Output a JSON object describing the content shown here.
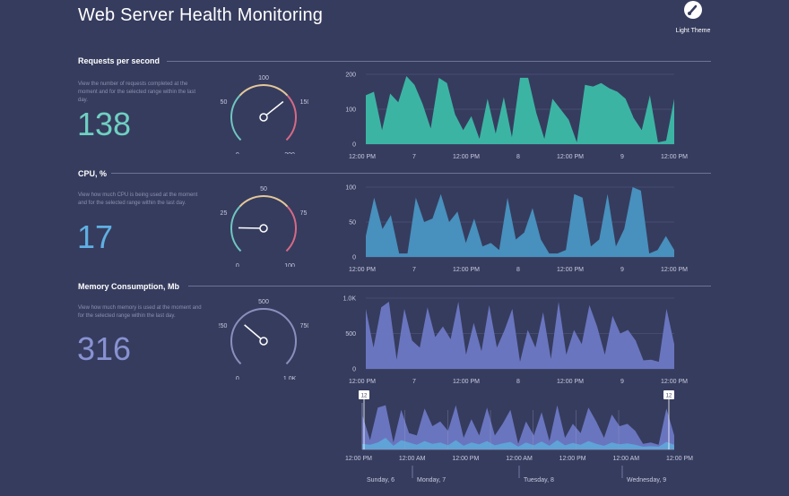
{
  "header": {
    "title": "Web Server Health Monitoring",
    "theme_label": "Light Theme"
  },
  "colors": {
    "background": "#363c5e",
    "requests": "#3dbaa8",
    "cpu": "#4a95c2",
    "memory": "#6e78c4",
    "memory_light": "#5fa5d8",
    "gauge_low": "#6fc6c0",
    "gauge_mid": "#e3c89a",
    "gauge_high": "#d66a86"
  },
  "sections": [
    {
      "id": "requests",
      "title": "Requests per second",
      "description": "View the number of requests completed at the moment and for the selected range within the last day.",
      "value": "138",
      "gauge": {
        "min": 0,
        "max": 200,
        "value": 138,
        "tick_labels": [
          "0",
          "50",
          "100",
          "150",
          "200"
        ]
      },
      "chart_data": {
        "type": "area",
        "ylim": [
          0,
          200
        ],
        "y_ticks": [
          "0",
          "100",
          "200"
        ],
        "x_ticks": [
          "12:00 PM",
          "7",
          "12:00 PM",
          "8",
          "12:00 PM",
          "9",
          "12:00 PM"
        ],
        "values": [
          140,
          150,
          40,
          145,
          120,
          195,
          170,
          115,
          45,
          190,
          175,
          85,
          40,
          80,
          15,
          130,
          30,
          135,
          20,
          190,
          190,
          90,
          15,
          130,
          100,
          70,
          5,
          170,
          165,
          175,
          160,
          150,
          130,
          75,
          40,
          140,
          5,
          10,
          130
        ]
      }
    },
    {
      "id": "cpu",
      "title": "CPU, %",
      "description": "View how much CPU is being used at the moment and for the selected range within the last day.",
      "value": "17",
      "gauge": {
        "min": 0,
        "max": 100,
        "value": 17,
        "tick_labels": [
          "0",
          "25",
          "50",
          "75",
          "100"
        ]
      },
      "chart_data": {
        "type": "area",
        "ylim": [
          0,
          100
        ],
        "y_ticks": [
          "0",
          "50",
          "100"
        ],
        "x_ticks": [
          "12:00 PM",
          "7",
          "12:00 PM",
          "8",
          "12:00 PM",
          "9",
          "12:00 PM"
        ],
        "values": [
          30,
          85,
          40,
          60,
          5,
          5,
          85,
          50,
          55,
          90,
          50,
          65,
          20,
          55,
          15,
          20,
          10,
          85,
          25,
          35,
          70,
          25,
          5,
          5,
          10,
          90,
          85,
          15,
          25,
          90,
          15,
          40,
          100,
          95,
          5,
          10,
          30,
          10
        ]
      }
    },
    {
      "id": "memory",
      "title": "Memory Consumption, Mb",
      "description": "View how much memory is used at the moment and for the selected range within the last day.",
      "value": "316",
      "gauge": {
        "min": 0,
        "max": 1000,
        "value": 316,
        "tick_labels": [
          "0",
          "250",
          "500",
          "750",
          "1.0K"
        ]
      },
      "chart_data": {
        "type": "area",
        "ylim": [
          0,
          1000
        ],
        "y_ticks": [
          "0",
          "500",
          "1.0K"
        ],
        "x_ticks": [
          "12:00 PM",
          "7",
          "12:00 PM",
          "8",
          "12:00 PM",
          "9",
          "12:00 PM"
        ],
        "values": [
          850,
          300,
          870,
          950,
          130,
          850,
          400,
          300,
          870,
          450,
          600,
          420,
          950,
          200,
          650,
          250,
          900,
          300,
          550,
          850,
          100,
          550,
          300,
          800,
          140,
          950,
          200,
          550,
          350,
          900,
          600,
          200,
          750,
          500,
          550,
          400,
          120,
          130,
          100,
          850,
          350
        ]
      }
    }
  ],
  "navigator": {
    "handle_label_left": "12",
    "handle_label_right": "12",
    "x_ticks": [
      "12:00 PM",
      "12:00 AM",
      "12:00 PM",
      "12:00 AM",
      "12:00 PM",
      "12:00 AM",
      "12:00 PM"
    ],
    "day_labels": [
      "Sunday, 6",
      "Monday, 7",
      "Tuesday, 8",
      "Wednesday, 9"
    ],
    "chart_data": {
      "type": "area",
      "ylim": [
        0,
        1000
      ],
      "series": [
        {
          "values": [
            750,
            200,
            900,
            950,
            150,
            850,
            350,
            300,
            880,
            500,
            600,
            400,
            950,
            250,
            650,
            300,
            900,
            300,
            550,
            850,
            120,
            600,
            300,
            800,
            180,
            950,
            250,
            550,
            350,
            900,
            600,
            250,
            750,
            500,
            550,
            400,
            120,
            150,
            100,
            880,
            300
          ]
        },
        {
          "values": [
            120,
            100,
            150,
            250,
            80,
            200,
            150,
            100,
            180,
            120,
            150,
            90,
            200,
            80,
            150,
            110,
            180,
            90,
            130,
            160,
            60,
            150,
            90,
            170,
            80,
            200,
            90,
            140,
            100,
            180,
            120,
            80,
            150,
            110,
            130,
            100,
            60,
            70,
            60,
            160,
            100
          ]
        }
      ]
    }
  }
}
